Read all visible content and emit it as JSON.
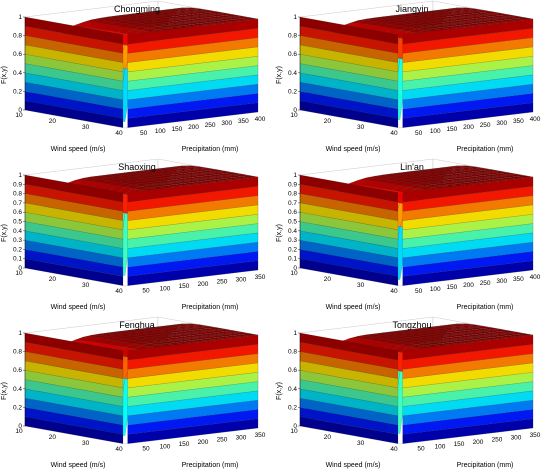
{
  "chart_data": [
    {
      "type": "surface",
      "title": "Chongming",
      "xlabel": "Precipitation (mm)",
      "ylabel": "Wind speed (m/s)",
      "zlabel": "F(x,y)",
      "x_ticks": [
        "50",
        "100",
        "150",
        "200",
        "250",
        "300",
        "350",
        "400"
      ],
      "y_ticks": [
        "40",
        "30",
        "20",
        "10"
      ],
      "z_ticks": [
        "0",
        "0.2",
        "0.4",
        "0.6",
        "0.8",
        "1"
      ],
      "xlim": [
        0,
        400
      ],
      "ylim": [
        10,
        40
      ],
      "zlim": [
        0,
        1
      ],
      "grid": true,
      "colormap": "jet"
    },
    {
      "type": "surface",
      "title": "Jiangyin",
      "xlabel": "Precipitation (mm)",
      "ylabel": "Wind speed (m/s)",
      "zlabel": "F(x,y)",
      "x_ticks": [
        "50",
        "100",
        "150",
        "200",
        "250",
        "300",
        "350",
        "400"
      ],
      "y_ticks": [
        "40",
        "30",
        "20",
        "10"
      ],
      "z_ticks": [
        "0",
        "0.2",
        "0.4",
        "0.6",
        "0.8",
        "1"
      ],
      "xlim": [
        0,
        400
      ],
      "ylim": [
        10,
        40
      ],
      "zlim": [
        0,
        1
      ],
      "grid": true,
      "colormap": "jet"
    },
    {
      "type": "surface",
      "title": "Shaoxing",
      "xlabel": "Precipitation (mm)",
      "ylabel": "Wind speed (m/s)",
      "zlabel": "F(x,y)",
      "x_ticks": [
        "50",
        "100",
        "150",
        "200",
        "250",
        "300",
        "350"
      ],
      "y_ticks": [
        "40",
        "30",
        "20",
        "10"
      ],
      "z_ticks": [
        "0",
        "0.1",
        "0.2",
        "0.3",
        "0.4",
        "0.5",
        "0.6",
        "0.7",
        "0.8",
        "0.9",
        "1"
      ],
      "xlim": [
        0,
        350
      ],
      "ylim": [
        10,
        40
      ],
      "zlim": [
        0,
        1
      ],
      "grid": true,
      "colormap": "jet"
    },
    {
      "type": "surface",
      "title": "Lin'an",
      "xlabel": "Precipitation (mm)",
      "ylabel": "Wind speed (m/s)",
      "zlabel": "F(x,y)",
      "x_ticks": [
        "50",
        "100",
        "150",
        "200",
        "250",
        "300",
        "350",
        "400"
      ],
      "y_ticks": [
        "40",
        "30",
        "20",
        "10"
      ],
      "z_ticks": [
        "0",
        "0.1",
        "0.2",
        "0.3",
        "0.4",
        "0.5",
        "0.6",
        "0.7",
        "0.8",
        "0.9",
        "1"
      ],
      "xlim": [
        0,
        400
      ],
      "ylim": [
        10,
        40
      ],
      "zlim": [
        0,
        1
      ],
      "grid": true,
      "colormap": "jet"
    },
    {
      "type": "surface",
      "title": "Fenghua",
      "xlabel": "Precipitation (mm)",
      "ylabel": "Wind speed (m/s)",
      "zlabel": "F(x,y)",
      "x_ticks": [
        "50",
        "100",
        "150",
        "200",
        "250",
        "300",
        "350"
      ],
      "y_ticks": [
        "40",
        "30",
        "20",
        "10"
      ],
      "z_ticks": [
        "0",
        "0.2",
        "0.4",
        "0.6",
        "0.8",
        "1"
      ],
      "xlim": [
        0,
        350
      ],
      "ylim": [
        10,
        40
      ],
      "zlim": [
        0,
        1
      ],
      "grid": true,
      "colormap": "jet"
    },
    {
      "type": "surface",
      "title": "Tongzhou",
      "xlabel": "Precipitation (mm)",
      "ylabel": "Wind speed (m/s)",
      "zlabel": "F(x,y)",
      "x_ticks": [
        "50",
        "100",
        "150",
        "200",
        "250",
        "300",
        "350"
      ],
      "y_ticks": [
        "40",
        "30",
        "20",
        "10"
      ],
      "z_ticks": [
        "0",
        "0.2",
        "0.4",
        "0.6",
        "0.8",
        "1"
      ],
      "xlim": [
        0,
        350
      ],
      "ylim": [
        10,
        40
      ],
      "zlim": [
        0,
        1
      ],
      "grid": true,
      "colormap": "jet"
    }
  ]
}
